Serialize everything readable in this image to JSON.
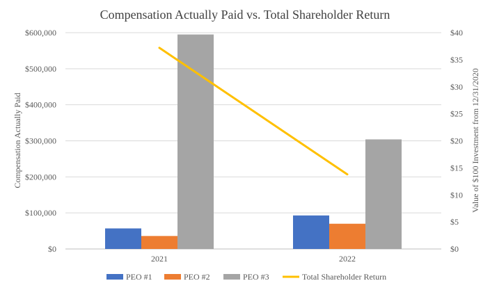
{
  "chart_data": {
    "type": "bar",
    "title": "Compensation Actually  Paid vs. Total Shareholder Return",
    "categories": [
      "2021",
      "2022"
    ],
    "ylabel": "Compensation Actually Paid",
    "ylabel_right": "Value of $100 Investment from 12/31/2020",
    "ylim": [
      0,
      600000
    ],
    "ylim_right": [
      0,
      40
    ],
    "yticks": [
      "$0",
      "$100,000",
      "$200,000",
      "$300,000",
      "$400,000",
      "$500,000",
      "$600,000"
    ],
    "yticks_right": [
      "$0",
      "$5",
      "$10",
      "$15",
      "$20",
      "$25",
      "$30",
      "$35",
      "$40"
    ],
    "grid": true,
    "legend_position": "bottom",
    "series": [
      {
        "name": "PEO #1",
        "type": "bar",
        "axis": "left",
        "color": "#4472C4",
        "values": [
          57000,
          93000
        ]
      },
      {
        "name": "PEO #2",
        "type": "bar",
        "axis": "left",
        "color": "#ED7D31",
        "values": [
          36000,
          70000
        ]
      },
      {
        "name": "PEO #3",
        "type": "bar",
        "axis": "left",
        "color": "#A5A5A5",
        "values": [
          595000,
          304000
        ]
      },
      {
        "name": "Total Shareholder Return",
        "type": "line",
        "axis": "right",
        "color": "#FFC000",
        "values": [
          37.2,
          13.8
        ]
      }
    ]
  }
}
